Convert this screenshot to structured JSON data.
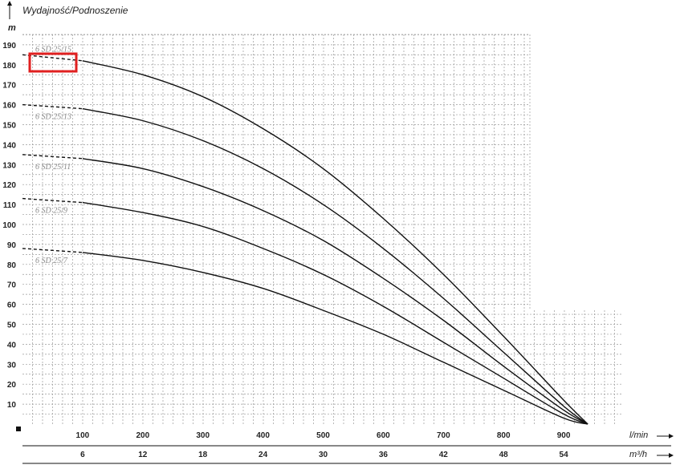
{
  "chart_data": {
    "type": "line",
    "title": "Wydajność/Podnoszenie",
    "ylabel": "m",
    "xlabel": "l/min",
    "xlabel_secondary": "m³/h",
    "ylim": [
      0,
      195
    ],
    "xlim": [
      0,
      1000
    ],
    "yticks": [
      10,
      20,
      30,
      40,
      50,
      60,
      70,
      80,
      90,
      100,
      110,
      120,
      130,
      140,
      150,
      160,
      170,
      180,
      190
    ],
    "xticks": [
      100,
      200,
      300,
      400,
      500,
      600,
      700,
      800,
      900
    ],
    "xticks_secondary": [
      6,
      12,
      18,
      24,
      30,
      36,
      42,
      48,
      54
    ],
    "grid": true,
    "highlighted_series": "6 SD 25/15",
    "highlight_color": "#e02020",
    "series": [
      {
        "name": "6 SD 25/15",
        "x": [
          0,
          100,
          200,
          300,
          400,
          500,
          600,
          700,
          800,
          900,
          940
        ],
        "y": [
          185,
          182,
          175,
          164,
          148,
          128,
          103,
          75,
          44,
          12,
          0
        ]
      },
      {
        "name": "6 SD 25/13",
        "x": [
          0,
          100,
          200,
          300,
          400,
          500,
          600,
          700,
          800,
          900,
          940
        ],
        "y": [
          160,
          158,
          152,
          142,
          128,
          110,
          88,
          63,
          36,
          9,
          0
        ]
      },
      {
        "name": "6 SD 25/11",
        "x": [
          0,
          100,
          200,
          300,
          400,
          500,
          600,
          700,
          800,
          900,
          940
        ],
        "y": [
          135,
          133,
          128,
          119,
          107,
          92,
          73,
          52,
          29,
          7,
          0
        ]
      },
      {
        "name": "6 SD 25/9",
        "x": [
          0,
          100,
          200,
          300,
          400,
          500,
          600,
          700,
          800,
          900,
          940
        ],
        "y": [
          113,
          111,
          106,
          99,
          88,
          75,
          59,
          41,
          23,
          5,
          0
        ]
      },
      {
        "name": "6 SD 25/7",
        "x": [
          0,
          100,
          200,
          300,
          400,
          500,
          600,
          700,
          800,
          900,
          940
        ],
        "y": [
          88,
          86,
          82,
          76,
          68,
          57,
          45,
          31,
          17,
          3,
          0
        ]
      }
    ]
  }
}
